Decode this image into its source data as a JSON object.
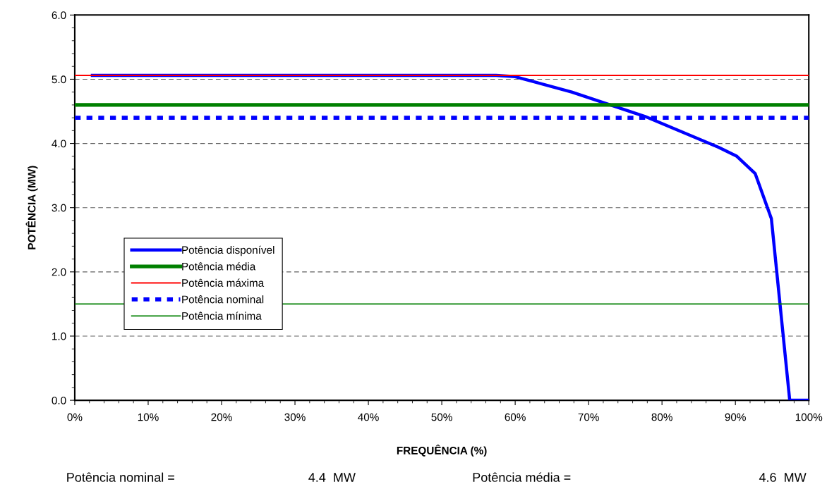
{
  "chart_data": {
    "type": "line",
    "xlabel": "FREQUÊNCIA (%)",
    "ylabel": "POTÊNCIA (MW)",
    "xlim": [
      0,
      100
    ],
    "ylim": [
      0,
      6
    ],
    "xticks": [
      {
        "value": 0,
        "label": "0%"
      },
      {
        "value": 10,
        "label": "10%"
      },
      {
        "value": 20,
        "label": "20%"
      },
      {
        "value": 30,
        "label": "30%"
      },
      {
        "value": 40,
        "label": "40%"
      },
      {
        "value": 50,
        "label": "50%"
      },
      {
        "value": 60,
        "label": "60%"
      },
      {
        "value": 70,
        "label": "70%"
      },
      {
        "value": 80,
        "label": "80%"
      },
      {
        "value": 90,
        "label": "90%"
      },
      {
        "value": 100,
        "label": "100%"
      }
    ],
    "yticks": [
      {
        "value": 0,
        "label": "0.0"
      },
      {
        "value": 1,
        "label": "1.0"
      },
      {
        "value": 2,
        "label": "2.0"
      },
      {
        "value": 3,
        "label": "3.0"
      },
      {
        "value": 4,
        "label": "4.0"
      },
      {
        "value": 5,
        "label": "5.0"
      },
      {
        "value": 6,
        "label": "6.0"
      }
    ],
    "grid": "y",
    "legend": "left",
    "marker": "none",
    "series": [
      {
        "name": "Potência disponível",
        "color": "#0000ff",
        "x": [
          2.4,
          57.4,
          60,
          67.7,
          77.7,
          87.7,
          90.2,
          92.7,
          94.9,
          97.4,
          100
        ],
        "values": [
          5.06,
          5.06,
          5.04,
          4.8,
          4.42,
          3.94,
          3.8,
          3.53,
          2.83,
          0,
          0
        ]
      },
      {
        "name": "Potência média",
        "color": "#008000",
        "x": [
          0,
          100
        ],
        "values": [
          4.6,
          4.6
        ]
      },
      {
        "name": "Potência máxima",
        "color": "#ff0000",
        "x": [
          0,
          100
        ],
        "values": [
          5.06,
          5.06
        ]
      },
      {
        "name": "Potência nominal",
        "color": "#0000ff",
        "x": [
          0,
          100
        ],
        "values": [
          4.4,
          4.4
        ],
        "line_style": "dashed"
      },
      {
        "name": "Potência mínima",
        "color": "#008000",
        "x": [
          0,
          100
        ],
        "values": [
          1.5,
          1.5
        ]
      }
    ],
    "annotations": [
      "Potência nominal =",
      "4.4  MW",
      "Potência média =",
      "4.6  MW"
    ]
  }
}
